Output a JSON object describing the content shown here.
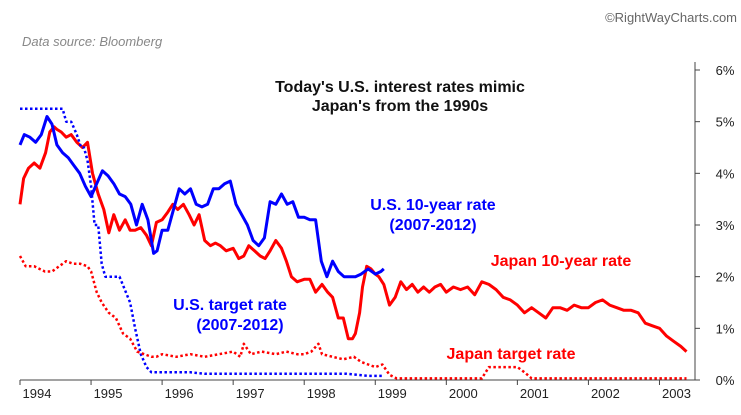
{
  "credit": "©RightWayCharts.com",
  "source": "Data source: Bloomberg",
  "chart_data": {
    "type": "line",
    "title": [
      "Today's U.S. interest rates mimic",
      "Japan's from the 1990s"
    ],
    "xlabel": "",
    "ylabel": "",
    "xlim": [
      1994,
      2003.5
    ],
    "ylim": [
      0,
      6
    ],
    "x_ticks": [
      1994,
      1995,
      1996,
      1997,
      1998,
      1999,
      2000,
      2001,
      2002,
      2003
    ],
    "x_tick_labels": [
      "1994",
      "1995",
      "1996",
      "1997",
      "1998",
      "1999",
      "2000",
      "2001",
      "2002",
      "2003"
    ],
    "y_ticks": [
      0,
      1,
      2,
      3,
      4,
      5,
      6
    ],
    "y_tick_labels": [
      "0%",
      "1%",
      "2%",
      "3%",
      "4%",
      "5%",
      "6%"
    ],
    "y_axis_side": "right",
    "grid": false,
    "series": [
      {
        "name": "Japan 10-year rate",
        "label_lines": [
          "Japan 10-year rate"
        ],
        "color": "#ff0000",
        "style": "solid",
        "x": [
          1994.0,
          1994.05,
          1994.12,
          1994.2,
          1994.28,
          1994.36,
          1994.42,
          1994.48,
          1994.52,
          1994.58,
          1994.65,
          1994.72,
          1994.8,
          1994.88,
          1994.95,
          1995.02,
          1995.1,
          1995.18,
          1995.25,
          1995.32,
          1995.4,
          1995.48,
          1995.55,
          1995.62,
          1995.7,
          1995.78,
          1995.85,
          1995.92,
          1996.0,
          1996.08,
          1996.15,
          1996.22,
          1996.3,
          1996.38,
          1996.45,
          1996.52,
          1996.6,
          1996.68,
          1996.75,
          1996.82,
          1996.9,
          1997.0,
          1997.08,
          1997.15,
          1997.22,
          1997.3,
          1997.38,
          1997.45,
          1997.52,
          1997.6,
          1997.68,
          1997.75,
          1997.82,
          1997.9,
          1998.0,
          1998.08,
          1998.16,
          1998.25,
          1998.33,
          1998.4,
          1998.48,
          1998.55,
          1998.62,
          1998.68,
          1998.72,
          1998.78,
          1998.82,
          1998.88,
          1998.94,
          1999.0,
          1999.05,
          1999.12,
          1999.2,
          1999.28,
          1999.36,
          1999.44,
          1999.52,
          1999.6,
          1999.68,
          1999.76,
          1999.84,
          1999.92,
          2000.0,
          2000.1,
          2000.2,
          2000.3,
          2000.4,
          2000.5,
          2000.6,
          2000.7,
          2000.8,
          2000.9,
          2001.0,
          2001.1,
          2001.2,
          2001.3,
          2001.4,
          2001.5,
          2001.6,
          2001.7,
          2001.8,
          2001.9,
          2002.0,
          2002.1,
          2002.2,
          2002.3,
          2002.4,
          2002.5,
          2002.6,
          2002.7,
          2002.8,
          2002.9,
          2003.0,
          2003.1,
          2003.2,
          2003.3,
          2003.38
        ],
        "values": [
          3.4,
          3.9,
          4.1,
          4.2,
          4.1,
          4.4,
          4.8,
          4.9,
          4.85,
          4.8,
          4.7,
          4.75,
          4.6,
          4.5,
          4.6,
          4.0,
          3.6,
          3.3,
          2.85,
          3.2,
          2.9,
          3.1,
          2.9,
          2.9,
          2.95,
          2.8,
          2.6,
          3.05,
          3.1,
          3.25,
          3.4,
          3.3,
          3.4,
          3.2,
          3.0,
          3.2,
          2.7,
          2.6,
          2.65,
          2.6,
          2.5,
          2.55,
          2.35,
          2.4,
          2.6,
          2.5,
          2.4,
          2.35,
          2.5,
          2.7,
          2.55,
          2.3,
          2.0,
          1.9,
          1.95,
          1.95,
          1.7,
          1.85,
          1.7,
          1.6,
          1.2,
          1.2,
          0.8,
          0.8,
          0.9,
          1.3,
          1.8,
          2.2,
          2.15,
          2.05,
          2.0,
          1.85,
          1.45,
          1.6,
          1.9,
          1.75,
          1.85,
          1.7,
          1.8,
          1.7,
          1.8,
          1.85,
          1.7,
          1.8,
          1.75,
          1.8,
          1.65,
          1.9,
          1.85,
          1.75,
          1.6,
          1.55,
          1.45,
          1.3,
          1.4,
          1.3,
          1.2,
          1.4,
          1.4,
          1.35,
          1.45,
          1.4,
          1.4,
          1.5,
          1.55,
          1.45,
          1.4,
          1.35,
          1.35,
          1.3,
          1.1,
          1.05,
          1.0,
          0.85,
          0.75,
          0.65,
          0.55
        ]
      },
      {
        "name": "U.S. 10-year rate (2007-2012)",
        "label_lines": [
          "U.S. 10-year rate",
          "(2007-2012)"
        ],
        "color": "#0000ff",
        "style": "solid",
        "x": [
          1994.0,
          1994.06,
          1994.14,
          1994.22,
          1994.3,
          1994.38,
          1994.45,
          1994.52,
          1994.6,
          1994.68,
          1994.76,
          1994.84,
          1994.92,
          1995.0,
          1995.08,
          1995.16,
          1995.24,
          1995.32,
          1995.4,
          1995.48,
          1995.56,
          1995.64,
          1995.72,
          1995.8,
          1995.88,
          1995.93,
          1996.0,
          1996.08,
          1996.16,
          1996.24,
          1996.32,
          1996.4,
          1996.48,
          1996.56,
          1996.64,
          1996.72,
          1996.8,
          1996.88,
          1996.96,
          1997.04,
          1997.12,
          1997.2,
          1997.28,
          1997.36,
          1997.44,
          1997.52,
          1997.6,
          1997.68,
          1997.76,
          1997.84,
          1997.92,
          1998.0,
          1998.08,
          1998.16,
          1998.24,
          1998.32,
          1998.4,
          1998.48,
          1998.56,
          1998.64,
          1998.72,
          1998.8,
          1998.9,
          1999.0,
          1999.08,
          1999.12
        ],
        "values": [
          4.55,
          4.75,
          4.7,
          4.6,
          4.75,
          5.1,
          4.95,
          4.55,
          4.4,
          4.3,
          4.15,
          4.0,
          3.75,
          3.55,
          3.8,
          4.05,
          3.95,
          3.8,
          3.6,
          3.55,
          3.4,
          3.0,
          3.4,
          3.1,
          2.45,
          2.5,
          2.9,
          2.9,
          3.3,
          3.7,
          3.6,
          3.7,
          3.4,
          3.35,
          3.4,
          3.7,
          3.7,
          3.8,
          3.85,
          3.4,
          3.2,
          3.0,
          2.7,
          2.6,
          2.75,
          3.45,
          3.4,
          3.6,
          3.4,
          3.45,
          3.15,
          3.15,
          3.1,
          3.1,
          2.3,
          2.0,
          2.3,
          2.1,
          2.0,
          2.0,
          2.0,
          2.05,
          2.15,
          2.05,
          2.1,
          2.15
        ]
      },
      {
        "name": "U.S. target rate (2007-2012)",
        "label_lines": [
          "U.S. target rate",
          "(2007-2012)"
        ],
        "color": "#0000ff",
        "style": "dotted",
        "x": [
          1994.0,
          1994.6,
          1994.65,
          1994.72,
          1994.8,
          1994.86,
          1994.9,
          1994.95,
          1995.0,
          1995.05,
          1995.1,
          1995.15,
          1995.2,
          1995.35,
          1995.4,
          1995.55,
          1995.62,
          1995.7,
          1995.78,
          1995.85,
          1995.92,
          1996.0,
          1996.2,
          1996.4,
          1996.6,
          1997.0,
          1997.4,
          1997.8,
          1998.2,
          1998.6,
          1998.9,
          1999.1
        ],
        "values": [
          5.25,
          5.25,
          5.0,
          5.0,
          4.75,
          4.5,
          4.5,
          4.25,
          3.75,
          3.0,
          3.0,
          2.25,
          2.0,
          2.0,
          2.0,
          1.5,
          1.0,
          0.5,
          0.25,
          0.15,
          0.15,
          0.15,
          0.15,
          0.15,
          0.12,
          0.12,
          0.12,
          0.12,
          0.12,
          0.12,
          0.08,
          0.08
        ]
      },
      {
        "name": "Japan target rate",
        "label_lines": [
          "Japan target rate"
        ],
        "color": "#ff0000",
        "style": "dotted",
        "x": [
          1994.0,
          1994.08,
          1994.2,
          1994.35,
          1994.45,
          1994.55,
          1994.65,
          1994.75,
          1994.85,
          1994.95,
          1995.0,
          1995.08,
          1995.15,
          1995.25,
          1995.35,
          1995.45,
          1995.55,
          1995.65,
          1995.75,
          1995.85,
          1995.92,
          1996.0,
          1996.2,
          1996.4,
          1996.6,
          1996.8,
          1997.0,
          1997.1,
          1997.15,
          1997.25,
          1997.4,
          1997.6,
          1997.75,
          1997.9,
          1998.0,
          1998.1,
          1998.2,
          1998.25,
          1998.4,
          1998.55,
          1998.7,
          1998.8,
          1998.9,
          1999.0,
          1999.1,
          1999.2,
          1999.3,
          1999.5,
          2000.0,
          2000.5,
          2000.6,
          2000.7,
          2001.0,
          2001.1,
          2001.2,
          2001.5,
          2002.0,
          2002.5,
          2003.0,
          2003.38
        ],
        "values": [
          2.4,
          2.2,
          2.2,
          2.1,
          2.1,
          2.2,
          2.3,
          2.25,
          2.25,
          2.2,
          2.1,
          1.7,
          1.5,
          1.3,
          1.2,
          0.9,
          0.8,
          0.55,
          0.5,
          0.45,
          0.45,
          0.5,
          0.45,
          0.5,
          0.45,
          0.5,
          0.55,
          0.45,
          0.7,
          0.5,
          0.55,
          0.5,
          0.55,
          0.5,
          0.5,
          0.55,
          0.7,
          0.5,
          0.45,
          0.4,
          0.45,
          0.35,
          0.3,
          0.25,
          0.3,
          0.1,
          0.03,
          0.03,
          0.03,
          0.03,
          0.25,
          0.25,
          0.25,
          0.15,
          0.03,
          0.03,
          0.03,
          0.03,
          0.03,
          0.03
        ]
      }
    ]
  }
}
